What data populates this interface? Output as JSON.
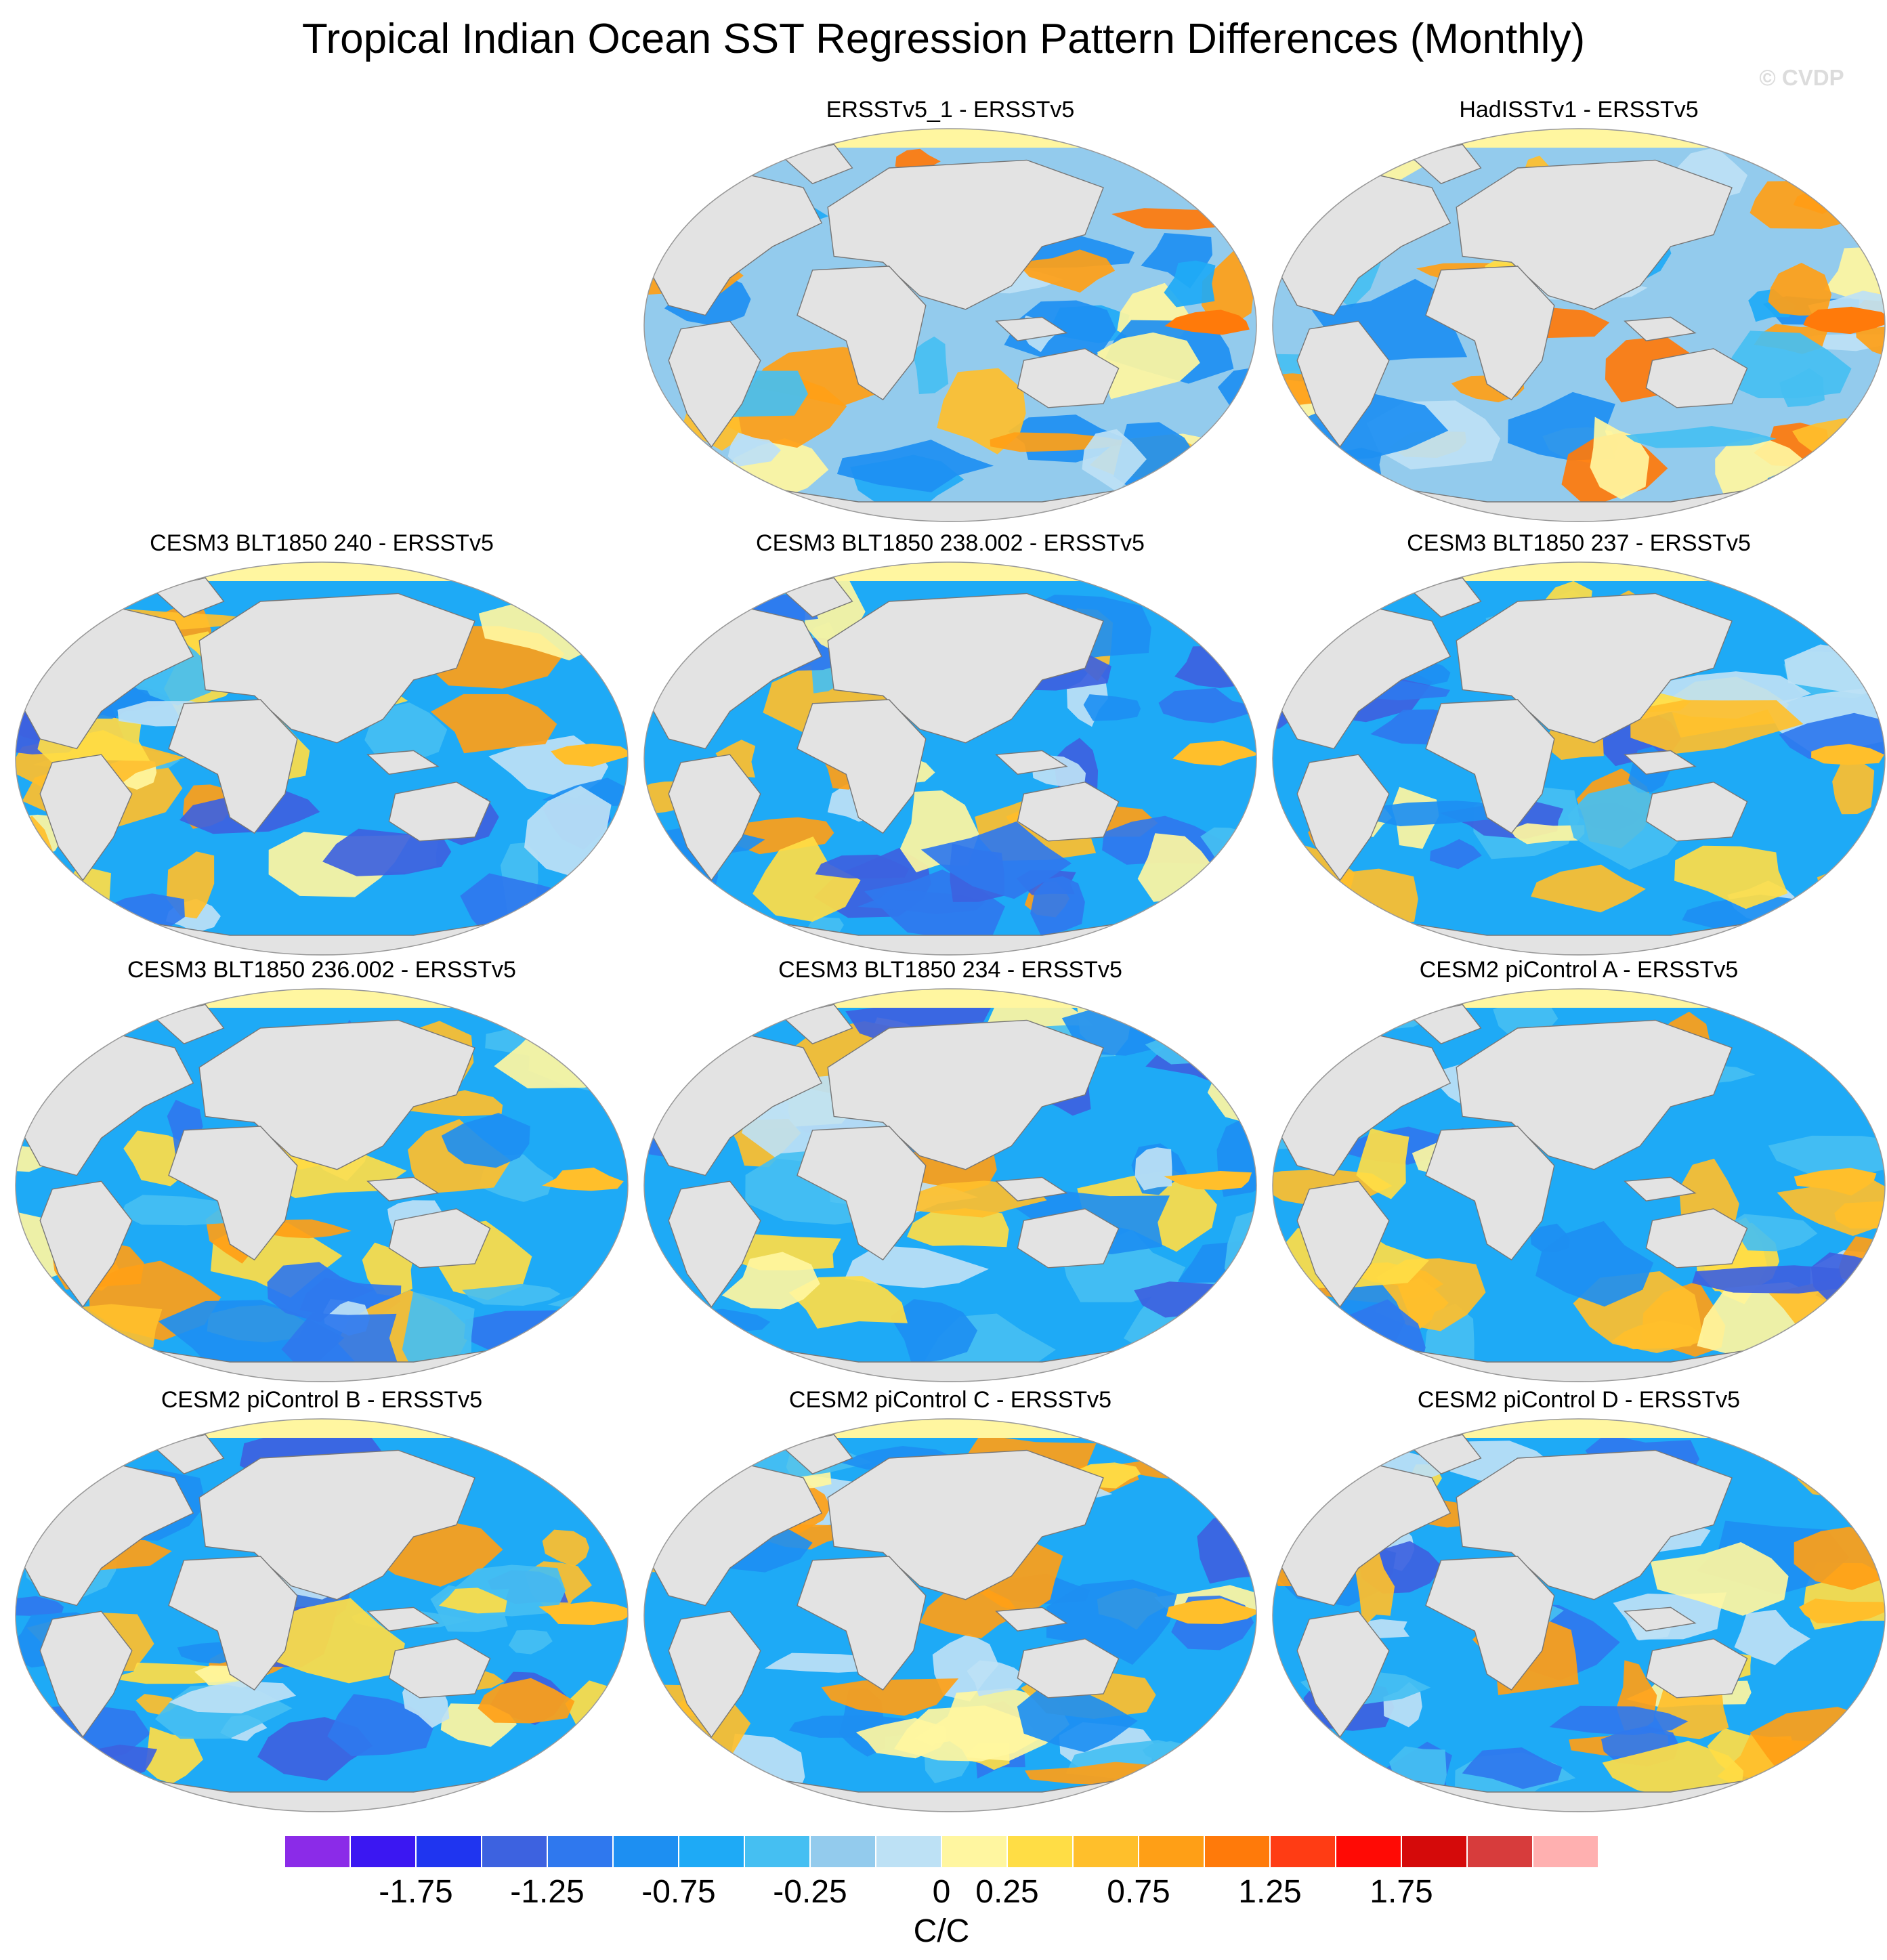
{
  "figure": {
    "title": "Tropical Indian Ocean SST Regression Pattern Differences (Monthly)",
    "watermark": "© CVDP",
    "panels": [
      {
        "title": "ERSSTv5_1 - ERSSTv5",
        "grid_row": 0,
        "grid_col": 1,
        "bias": "mixed"
      },
      {
        "title": "HadISSTv1 - ERSSTv5",
        "grid_row": 0,
        "grid_col": 2,
        "bias": "mixed"
      },
      {
        "title": "CESM3 BLT1850 240 - ERSSTv5",
        "grid_row": 1,
        "grid_col": 0,
        "bias": "cold"
      },
      {
        "title": "CESM3 BLT1850 238.002 - ERSSTv5",
        "grid_row": 1,
        "grid_col": 1,
        "bias": "cold"
      },
      {
        "title": "CESM3 BLT1850 237 - ERSSTv5",
        "grid_row": 1,
        "grid_col": 2,
        "bias": "cold"
      },
      {
        "title": "CESM3 BLT1850 236.002 - ERSSTv5",
        "grid_row": 2,
        "grid_col": 0,
        "bias": "cold"
      },
      {
        "title": "CESM3 BLT1850 234 - ERSSTv5",
        "grid_row": 2,
        "grid_col": 1,
        "bias": "cold"
      },
      {
        "title": "CESM2 piControl A - ERSSTv5",
        "grid_row": 2,
        "grid_col": 2,
        "bias": "cold"
      },
      {
        "title": "CESM2 piControl B - ERSSTv5",
        "grid_row": 3,
        "grid_col": 0,
        "bias": "cold"
      },
      {
        "title": "CESM2 piControl C - ERSSTv5",
        "grid_row": 3,
        "grid_col": 1,
        "bias": "cold"
      },
      {
        "title": "CESM2 piControl D - ERSSTv5",
        "grid_row": 3,
        "grid_col": 2,
        "bias": "cold"
      }
    ],
    "colorbar": {
      "units": "C/C",
      "colors": [
        "#8b2be8",
        "#3b17f2",
        "#1f35f0",
        "#3d62e0",
        "#2f78ee",
        "#1d8ff2",
        "#1eaaf6",
        "#45bff2",
        "#93cbed",
        "#bde1f5",
        "#fff6a0",
        "#ffdd45",
        "#ffbf2b",
        "#ff9f16",
        "#ff7a0a",
        "#ff3c14",
        "#ff0a05",
        "#d50a0a",
        "#d73c3c",
        "#ffb0b0"
      ],
      "labels": [
        "-1.75",
        "-1.25",
        "-0.75",
        "-0.25",
        "0",
        "0.25",
        "0.75",
        "1.25",
        "1.75"
      ],
      "label_boundary_index": [
        2,
        4,
        6,
        8,
        10,
        11,
        13,
        15,
        17
      ]
    }
  }
}
